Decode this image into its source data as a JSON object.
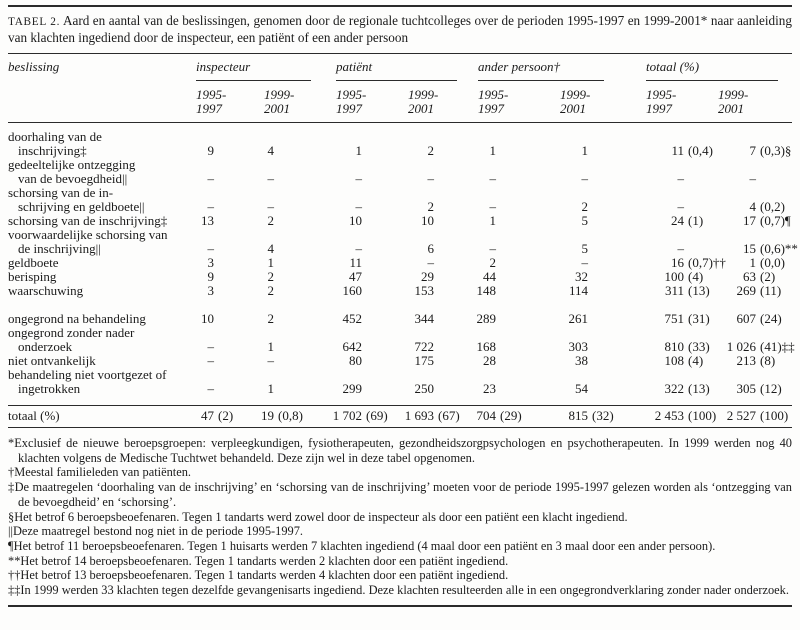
{
  "title": {
    "tag": "TABEL 2.",
    "text": "Aard en aantal van de beslissingen, genomen door de regionale tuchtcolleges over de perioden 1995-1997 en 1999-2001* naar aanleiding van klachten ingediend door de inspecteur, een patiënt of een ander persoon"
  },
  "table": {
    "row_header": "beslissing",
    "groups": [
      {
        "label": "inspecteur"
      },
      {
        "label": "patiënt"
      },
      {
        "label": "ander persoon†"
      },
      {
        "label": "totaal (%)"
      }
    ],
    "periods": {
      "a": {
        "l1": "1995-",
        "l2": "1997"
      },
      "b": {
        "l1": "1999-",
        "l2": "2001"
      }
    },
    "rows": [
      {
        "label1": "doorhaling van de",
        "label2": "inschrijving‡",
        "cells": [
          {
            "n": "9",
            "s": ""
          },
          {
            "n": "4",
            "s": ""
          },
          {
            "n": "1",
            "s": ""
          },
          {
            "n": "2",
            "s": ""
          },
          {
            "n": "1",
            "s": ""
          },
          {
            "n": "1",
            "s": ""
          },
          {
            "n": "11",
            "s": "(0,4)"
          },
          {
            "n": "7",
            "s": "(0,3)§"
          }
        ]
      },
      {
        "label1": "gedeeltelijke ontzegging",
        "label2": "van de bevoegdheid||",
        "cells": [
          {
            "n": "–",
            "s": ""
          },
          {
            "n": "–",
            "s": ""
          },
          {
            "n": "–",
            "s": ""
          },
          {
            "n": "–",
            "s": ""
          },
          {
            "n": "–",
            "s": ""
          },
          {
            "n": "–",
            "s": ""
          },
          {
            "n": "–",
            "s": ""
          },
          {
            "n": "–",
            "s": ""
          }
        ]
      },
      {
        "label1": "schorsing van de in-",
        "label2": "schrijving en geldboete||",
        "cells": [
          {
            "n": "–",
            "s": ""
          },
          {
            "n": "–",
            "s": ""
          },
          {
            "n": "–",
            "s": ""
          },
          {
            "n": "2",
            "s": ""
          },
          {
            "n": "–",
            "s": ""
          },
          {
            "n": "2",
            "s": ""
          },
          {
            "n": "–",
            "s": ""
          },
          {
            "n": "4",
            "s": "(0,2)"
          }
        ]
      },
      {
        "label1": "schorsing van de inschrijving‡",
        "label2": "",
        "cells": [
          {
            "n": "13",
            "s": ""
          },
          {
            "n": "2",
            "s": ""
          },
          {
            "n": "10",
            "s": ""
          },
          {
            "n": "10",
            "s": ""
          },
          {
            "n": "1",
            "s": ""
          },
          {
            "n": "5",
            "s": ""
          },
          {
            "n": "24",
            "s": "(1)"
          },
          {
            "n": "17",
            "s": "(0,7)¶"
          }
        ]
      },
      {
        "label1": "voorwaardelijke schorsing van",
        "label2": "de inschrijving||",
        "cells": [
          {
            "n": "–",
            "s": ""
          },
          {
            "n": "4",
            "s": ""
          },
          {
            "n": "–",
            "s": ""
          },
          {
            "n": "6",
            "s": ""
          },
          {
            "n": "–",
            "s": ""
          },
          {
            "n": "5",
            "s": ""
          },
          {
            "n": "–",
            "s": ""
          },
          {
            "n": "15",
            "s": "(0,6)**"
          }
        ]
      },
      {
        "label1": "geldboete",
        "label2": "",
        "cells": [
          {
            "n": "3",
            "s": ""
          },
          {
            "n": "1",
            "s": ""
          },
          {
            "n": "11",
            "s": ""
          },
          {
            "n": "–",
            "s": ""
          },
          {
            "n": "2",
            "s": ""
          },
          {
            "n": "–",
            "s": ""
          },
          {
            "n": "16",
            "s": "(0,7)††"
          },
          {
            "n": "1",
            "s": "(0,0)"
          }
        ]
      },
      {
        "label1": "berisping",
        "label2": "",
        "cells": [
          {
            "n": "9",
            "s": ""
          },
          {
            "n": "2",
            "s": ""
          },
          {
            "n": "47",
            "s": ""
          },
          {
            "n": "29",
            "s": ""
          },
          {
            "n": "44",
            "s": ""
          },
          {
            "n": "32",
            "s": ""
          },
          {
            "n": "100",
            "s": "(4)"
          },
          {
            "n": "63",
            "s": "(2)"
          }
        ]
      },
      {
        "label1": "waarschuwing",
        "label2": "",
        "cells": [
          {
            "n": "3",
            "s": ""
          },
          {
            "n": "2",
            "s": ""
          },
          {
            "n": "160",
            "s": ""
          },
          {
            "n": "153",
            "s": ""
          },
          {
            "n": "148",
            "s": ""
          },
          {
            "n": "114",
            "s": ""
          },
          {
            "n": "311",
            "s": "(13)"
          },
          {
            "n": "269",
            "s": "(11)"
          }
        ]
      },
      {
        "label1": "ongegrond na behandeling",
        "label2": "",
        "cls": "gap",
        "cells": [
          {
            "n": "10",
            "s": ""
          },
          {
            "n": "2",
            "s": ""
          },
          {
            "n": "452",
            "s": ""
          },
          {
            "n": "344",
            "s": ""
          },
          {
            "n": "289",
            "s": ""
          },
          {
            "n": "261",
            "s": ""
          },
          {
            "n": "751",
            "s": "(31)"
          },
          {
            "n": "607",
            "s": "(24)"
          }
        ]
      },
      {
        "label1": "ongegrond zonder nader",
        "label2": "onderzoek",
        "cells": [
          {
            "n": "–",
            "s": ""
          },
          {
            "n": "1",
            "s": ""
          },
          {
            "n": "642",
            "s": ""
          },
          {
            "n": "722",
            "s": ""
          },
          {
            "n": "168",
            "s": ""
          },
          {
            "n": "303",
            "s": ""
          },
          {
            "n": "810",
            "s": "(33)"
          },
          {
            "n": "1 026",
            "s": "(41)‡‡"
          }
        ]
      },
      {
        "label1": "niet ontvankelijk",
        "label2": "",
        "cells": [
          {
            "n": "–",
            "s": ""
          },
          {
            "n": "–",
            "s": ""
          },
          {
            "n": "80",
            "s": ""
          },
          {
            "n": "175",
            "s": ""
          },
          {
            "n": "28",
            "s": ""
          },
          {
            "n": "38",
            "s": ""
          },
          {
            "n": "108",
            "s": "(4)"
          },
          {
            "n": "213",
            "s": "(8)"
          }
        ]
      },
      {
        "label1": "behandeling niet voortgezet of",
        "label2": "ingetrokken",
        "cells": [
          {
            "n": "–",
            "s": ""
          },
          {
            "n": "1",
            "s": ""
          },
          {
            "n": "299",
            "s": ""
          },
          {
            "n": "250",
            "s": ""
          },
          {
            "n": "23",
            "s": ""
          },
          {
            "n": "54",
            "s": ""
          },
          {
            "n": "322",
            "s": "(13)"
          },
          {
            "n": "305",
            "s": "(12)"
          }
        ]
      }
    ],
    "total": {
      "label": "totaal (%)",
      "cells": [
        {
          "n": "47",
          "s": "(2)"
        },
        {
          "n": "19",
          "s": "(0,8)"
        },
        {
          "n": "1 702",
          "s": "(69)"
        },
        {
          "n": "1 693",
          "s": "(67)"
        },
        {
          "n": "704",
          "s": "(29)"
        },
        {
          "n": "815",
          "s": "(32)"
        },
        {
          "n": "2 453",
          "s": "(100)"
        },
        {
          "n": "2 527",
          "s": "(100)"
        }
      ]
    }
  },
  "footnotes": [
    "*Exclusief de nieuwe beroepsgroepen: verpleegkundigen, fysiotherapeuten, gezondheidszorgpsychologen en psychotherapeuten. In 1999 werden nog 40 klachten volgens de Medische Tuchtwet behandeld. Deze zijn wel in deze tabel opgenomen.",
    "†Meestal familieleden van patiënten.",
    "‡De maatregelen ‘doorhaling van de inschrijving’ en ‘schorsing van de inschrijving’ moeten voor de periode 1995-1997 gelezen worden als ‘ontzegging van de bevoegdheid’ en ‘schorsing’.",
    "§Het betrof 6 beroepsbeoefenaren. Tegen 1 tandarts werd zowel door de inspecteur als door een patiënt een klacht ingediend.",
    "||Deze maatregel bestond nog niet in de periode 1995-1997.",
    "¶Het betrof 11 beroepsbeoefenaren. Tegen 1 huisarts werden 7 klachten ingediend (4 maal door een patiënt en 3 maal door een ander persoon).",
    "**Het betrof 14 beroepsbeoefenaren. Tegen 1 tandarts werden 2 klachten door een patiënt ingediend.",
    "††Het betrof 13 beroepsbeoefenaren. Tegen 1 tandarts werden 4 klachten door een patiënt ingediend.",
    "‡‡In 1999 werden 33 klachten tegen dezelfde gevangenisarts ingediend. Deze klachten resulteerden alle in een ongegrondverklaring zonder nader onderzoek."
  ]
}
